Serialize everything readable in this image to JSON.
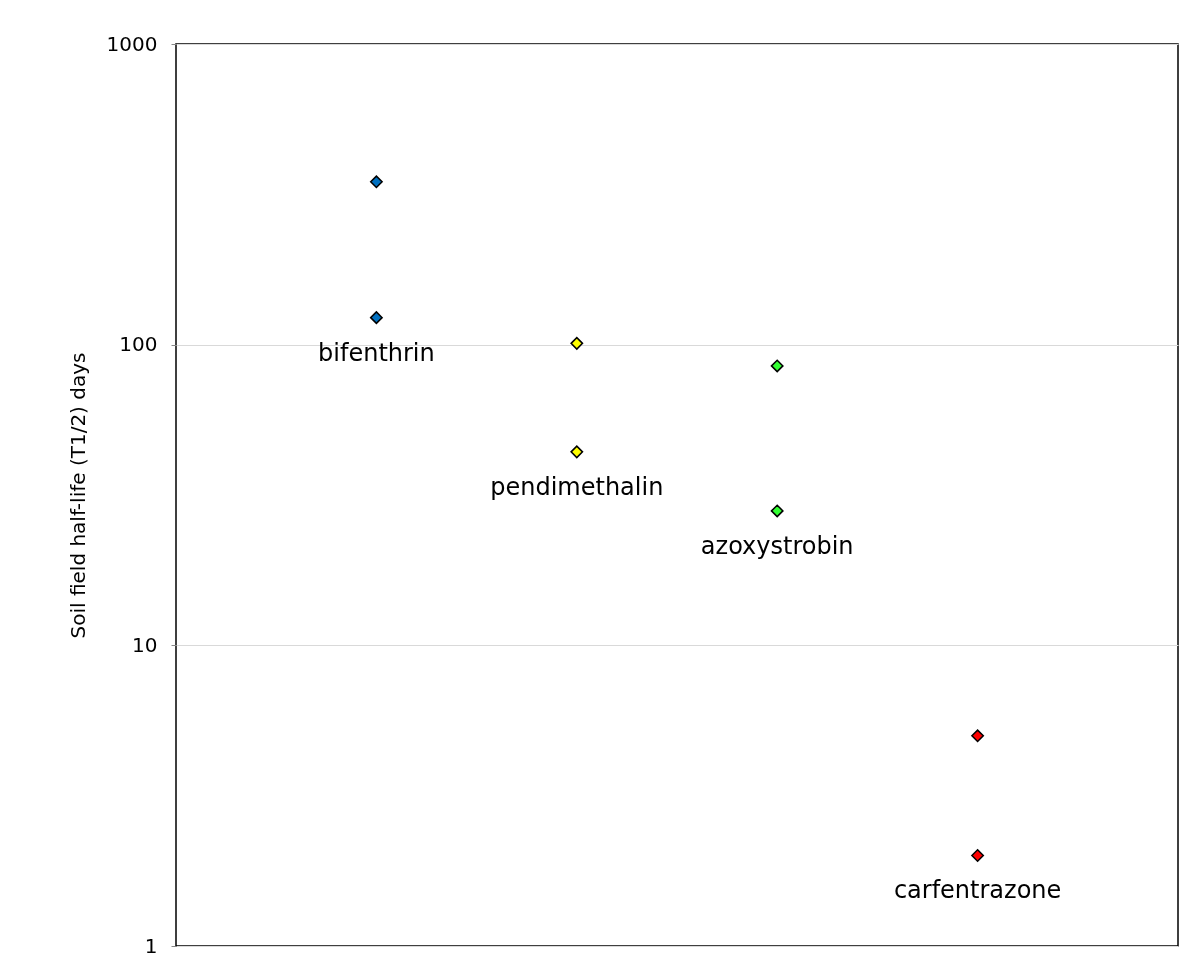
{
  "chart_data": {
    "type": "scatter",
    "ylabel": "Soil field half-life (T1/2) days",
    "log": "y",
    "ylim": [
      1,
      1000
    ],
    "yticks": [
      1,
      10,
      100,
      1000
    ],
    "tick_labels": "y",
    "grid": "y",
    "marker": "diamond",
    "categories": [
      null,
      null,
      null,
      null
    ],
    "series": [
      {
        "colors": [
          "#0070c0",
          "#ffff00",
          "#33ff33",
          "#ff0000"
        ],
        "values": [
          348,
          101,
          85,
          5
        ]
      },
      {
        "colors": [
          "#0070c0",
          "#ffff00",
          "#33ff33",
          "#ff0000"
        ],
        "values": [
          123,
          44,
          28,
          2
        ]
      }
    ],
    "annotations": [
      {
        "text": "bifenthrin",
        "y": 123
      },
      {
        "text": "pendimethalin",
        "y": 44
      },
      {
        "text": "azoxystrobin",
        "y": 28
      },
      {
        "text": "carfentrazone",
        "y": 2
      }
    ]
  }
}
